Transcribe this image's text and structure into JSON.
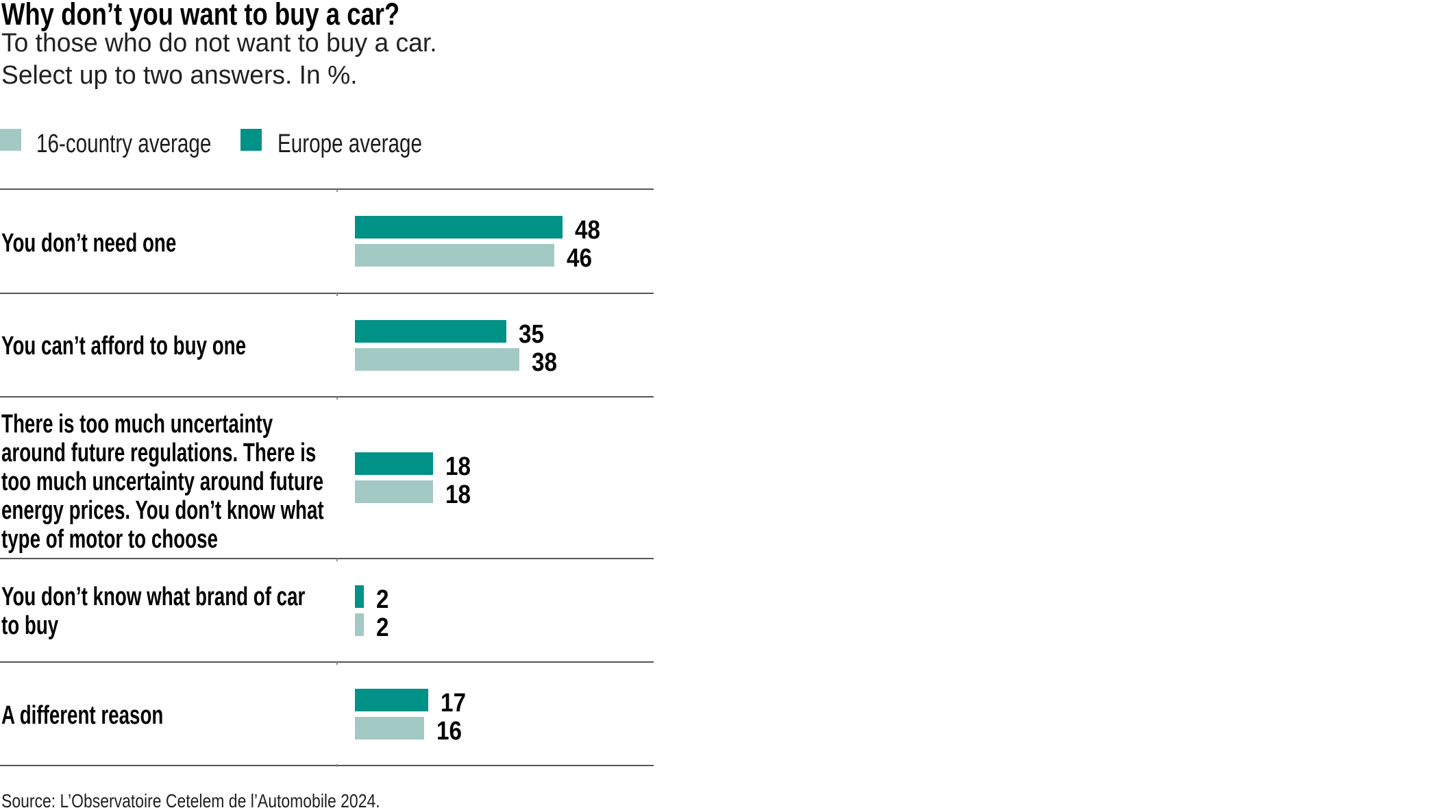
{
  "title": "Why don’t you want to buy a car?",
  "subtitle_line1": "To those who do not want to buy a car.",
  "subtitle_line2": "Select up to two answers. In %.",
  "legend": [
    {
      "label": "16-country average",
      "color": "#a3c9c4"
    },
    {
      "label": "Europe average",
      "color": "#009187"
    }
  ],
  "source": "Source: L’Observatoire Cetelem de l’Automobile 2024.",
  "chart_data": {
    "type": "bar",
    "orientation": "horizontal",
    "unit": "%",
    "title": "Why don’t you want to buy a car?",
    "subtitle": "To those who do not want to buy a car. Select up to two answers. In %.",
    "categories": [
      "You don’t need one",
      "You can’t afford to buy one",
      "There is too much uncertainty\naround future regulations. There is\ntoo much uncertainty around future\nenergy prices. You don’t know what\ntype of motor to choose",
      "You don’t know what brand of car\nto buy",
      "A different reason"
    ],
    "series": [
      {
        "name": "Europe average",
        "color": "#009187",
        "values": [
          48,
          35,
          18,
          2,
          17
        ]
      },
      {
        "name": "16-country average",
        "color": "#a3c9c4",
        "values": [
          46,
          38,
          18,
          2,
          16
        ]
      }
    ],
    "xlim": [
      0,
      69
    ],
    "value_labels": true,
    "legend_position": "top"
  }
}
